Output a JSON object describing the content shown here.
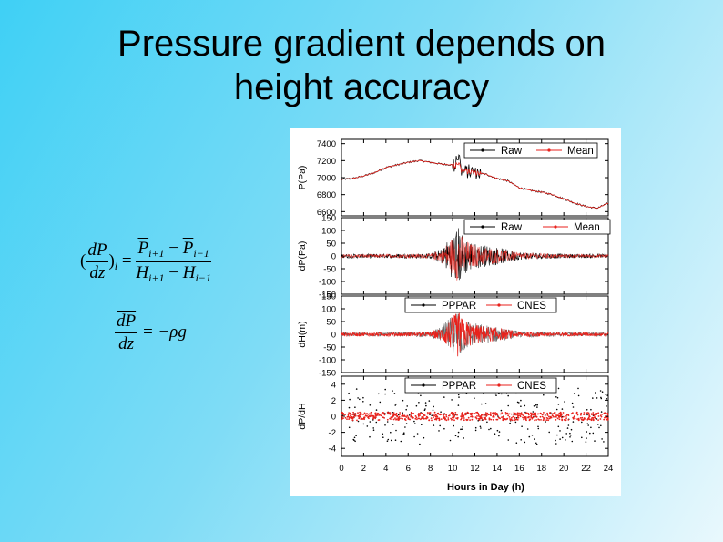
{
  "slide": {
    "title_line1": "Pressure gradient depends on",
    "title_line2": "height accuracy"
  },
  "equations": {
    "eq1": {
      "lhs_num": "dP",
      "lhs_den": "dz",
      "lhs_sub": "i",
      "rhs_num_a": "P",
      "rhs_num_a_sub": "i+1",
      "rhs_num_b": "P",
      "rhs_num_b_sub": "i−1",
      "rhs_den_a": "H",
      "rhs_den_a_sub": "i+1",
      "rhs_den_b": "H",
      "rhs_den_b_sub": "i−1"
    },
    "eq2": {
      "lhs_num": "dP",
      "lhs_den": "dz",
      "rhs": "= −ρg"
    }
  },
  "chart_data": [
    {
      "type": "line",
      "ylabel": "P(Pa)",
      "yticks": [
        "7400",
        "7200",
        "7000",
        "6800",
        "6600"
      ],
      "ylim": [
        6550,
        7450
      ],
      "series": [
        {
          "name": "Raw",
          "color": "#000000"
        },
        {
          "name": "Mean",
          "color": "#e8221c"
        }
      ],
      "x": [
        0,
        1,
        2,
        3,
        4,
        5,
        6,
        7,
        8,
        9,
        10,
        11,
        12,
        13,
        14,
        15,
        16,
        17,
        18,
        19,
        20,
        21,
        22,
        23,
        24
      ],
      "values": [
        6980,
        6990,
        7020,
        7060,
        7120,
        7150,
        7180,
        7200,
        7180,
        7160,
        7150,
        7080,
        7060,
        7040,
        6990,
        6960,
        6880,
        6850,
        6830,
        6800,
        6750,
        6700,
        6660,
        6640,
        6700
      ]
    },
    {
      "type": "line",
      "ylabel": "dP(Pa)",
      "yticks": [
        "150",
        "100",
        "50",
        "0",
        "-50",
        "-100",
        "-150"
      ],
      "ylim": [
        -150,
        150
      ],
      "series": [
        {
          "name": "Raw",
          "color": "#000000"
        },
        {
          "name": "Mean",
          "color": "#e8221c"
        }
      ],
      "envelope": {
        "x": [
          0,
          4,
          8,
          9,
          10,
          10.5,
          11,
          12,
          14,
          16,
          20,
          24
        ],
        "amplitude": [
          8,
          8,
          10,
          30,
          90,
          120,
          80,
          50,
          35,
          15,
          8,
          8
        ]
      }
    },
    {
      "type": "line",
      "ylabel": "dH(m)",
      "yticks": [
        "150",
        "100",
        "50",
        "0",
        "-50",
        "-100",
        "-150"
      ],
      "ylim": [
        -150,
        150
      ],
      "series": [
        {
          "name": "PPPAR",
          "color": "#000000"
        },
        {
          "name": "CNES",
          "color": "#e8221c"
        }
      ],
      "envelope": {
        "x": [
          0,
          4,
          8,
          9,
          10,
          10.5,
          11,
          12,
          14,
          16,
          20,
          24
        ],
        "amplitude": [
          8,
          8,
          10,
          30,
          80,
          110,
          70,
          45,
          30,
          12,
          8,
          8
        ]
      }
    },
    {
      "type": "scatter",
      "ylabel": "dP/dH",
      "yticks": [
        "4",
        "2",
        "0",
        "-2",
        "-4"
      ],
      "ylim": [
        -5,
        5
      ],
      "series": [
        {
          "name": "PPPAR",
          "color": "#000000"
        },
        {
          "name": "CNES",
          "color": "#e8221c"
        }
      ],
      "center": 0,
      "red_spread": 0.5,
      "black_spread": 3.5
    }
  ],
  "shared_x": {
    "xlabel": "Hours in Day (h)",
    "xticks": [
      "0",
      "2",
      "4",
      "6",
      "8",
      "10",
      "12",
      "14",
      "16",
      "18",
      "20",
      "22",
      "24"
    ],
    "xlim": [
      0,
      24
    ]
  }
}
